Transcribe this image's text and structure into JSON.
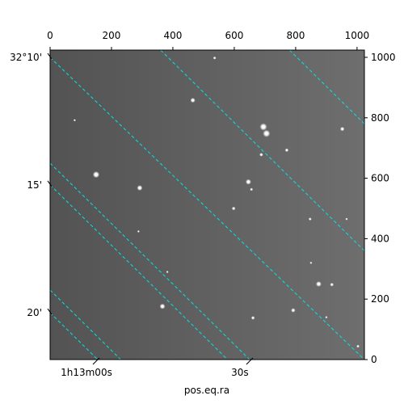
{
  "chart_data": {
    "type": "image",
    "title": "",
    "xlabel": "pos.eq.ra",
    "ylabel": "",
    "pixel_axes": {
      "x": {
        "range": [
          0,
          1024
        ],
        "ticks": [
          0,
          200,
          400,
          600,
          800,
          1000
        ],
        "labels": [
          "0",
          "200",
          "400",
          "600",
          "800",
          "1000"
        ]
      },
      "y": {
        "range": [
          0,
          1024
        ],
        "ticks": [
          0,
          200,
          400,
          600,
          800,
          1000
        ],
        "labels": [
          "0",
          "200",
          "400",
          "600",
          "800",
          "1000"
        ]
      }
    },
    "world_axes": {
      "ra_ticks": [
        {
          "x": 150,
          "label": "1h13m00s"
        },
        {
          "x": 650,
          "label": "30s"
        }
      ],
      "dec_ticks": [
        {
          "y": 1000,
          "label": "32°10'"
        },
        {
          "y": 578,
          "label": "15'"
        },
        {
          "y": 155,
          "label": "20'"
        }
      ]
    },
    "grid": true,
    "grid_color": "#00e5e5",
    "grid_lines": [
      {
        "x1": 0,
        "y1": 1000,
        "x2": 1024,
        "y2": 0
      },
      {
        "x1": 0,
        "y1": 578,
        "x2": 578,
        "y2": 0
      },
      {
        "x1": 0,
        "y1": 155,
        "x2": 155,
        "y2": 0
      },
      {
        "x1": 360,
        "y1": 1024,
        "x2": 1024,
        "y2": 360
      },
      {
        "x1": 780,
        "y1": 1024,
        "x2": 1024,
        "y2": 780
      },
      {
        "x1": 0,
        "y1": 230,
        "x2": 230,
        "y2": 0
      },
      {
        "x1": 0,
        "y1": 650,
        "x2": 650,
        "y2": 0
      },
      {
        "x1": 0,
        "y1": 1000,
        "x2": 0,
        "y2": 1000
      }
    ],
    "stars": [
      {
        "x": 150,
        "y": 612,
        "r": 11
      },
      {
        "x": 292,
        "y": 568,
        "r": 9
      },
      {
        "x": 465,
        "y": 858,
        "r": 8
      },
      {
        "x": 695,
        "y": 770,
        "r": 12
      },
      {
        "x": 705,
        "y": 748,
        "r": 12
      },
      {
        "x": 646,
        "y": 588,
        "r": 9
      },
      {
        "x": 688,
        "y": 678,
        "r": 6
      },
      {
        "x": 771,
        "y": 693,
        "r": 6
      },
      {
        "x": 598,
        "y": 500,
        "r": 6
      },
      {
        "x": 656,
        "y": 563,
        "r": 5
      },
      {
        "x": 875,
        "y": 250,
        "r": 9
      },
      {
        "x": 918,
        "y": 248,
        "r": 6
      },
      {
        "x": 847,
        "y": 465,
        "r": 5
      },
      {
        "x": 952,
        "y": 763,
        "r": 7
      },
      {
        "x": 366,
        "y": 176,
        "r": 9
      },
      {
        "x": 792,
        "y": 163,
        "r": 7
      },
      {
        "x": 661,
        "y": 138,
        "r": 6
      },
      {
        "x": 536,
        "y": 998,
        "r": 5
      },
      {
        "x": 288,
        "y": 424,
        "r": 4
      },
      {
        "x": 80,
        "y": 792,
        "r": 4
      },
      {
        "x": 1003,
        "y": 44,
        "r": 5
      },
      {
        "x": 966,
        "y": 465,
        "r": 4
      },
      {
        "x": 900,
        "y": 140,
        "r": 4
      },
      {
        "x": 850,
        "y": 320,
        "r": 3
      },
      {
        "x": 382,
        "y": 290,
        "r": 3
      }
    ]
  }
}
